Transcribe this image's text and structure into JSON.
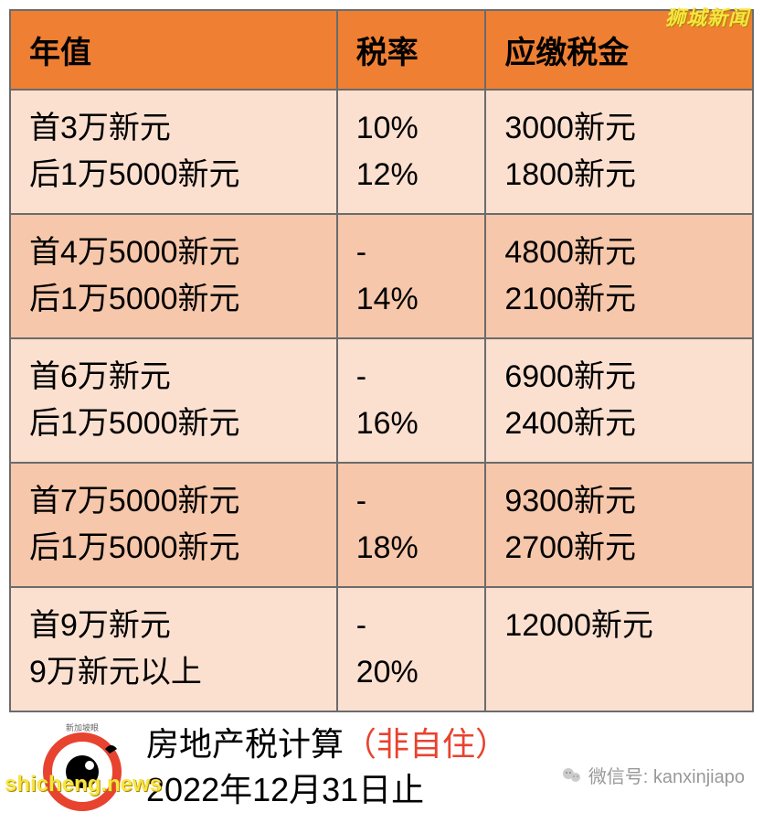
{
  "headers": {
    "col1": "年值",
    "col2": "税率",
    "col3": "应缴税金"
  },
  "rows": [
    {
      "bracket_a": "首3万新元",
      "bracket_b": "后1万5000新元",
      "rate_a": "10%",
      "rate_b": "12%",
      "tax_a": "3000新元",
      "tax_b": "1800新元",
      "shade": "light"
    },
    {
      "bracket_a": "首4万5000新元",
      "bracket_b": "后1万5000新元",
      "rate_a": "-",
      "rate_b": "14%",
      "tax_a": "4800新元",
      "tax_b": "2100新元",
      "shade": "dark"
    },
    {
      "bracket_a": "首6万新元",
      "bracket_b": "后1万5000新元",
      "rate_a": "-",
      "rate_b": "16%",
      "tax_a": "6900新元",
      "tax_b": "2400新元",
      "shade": "light"
    },
    {
      "bracket_a": "首7万5000新元",
      "bracket_b": "后1万5000新元",
      "rate_a": "-",
      "rate_b": "18%",
      "tax_a": "9300新元",
      "tax_b": "2700新元",
      "shade": "dark"
    },
    {
      "bracket_a": "首9万新元",
      "bracket_b": "9万新元以上",
      "rate_a": "-",
      "rate_b": "20%",
      "tax_a": "12000新元",
      "tax_b": "",
      "shade": "light"
    }
  ],
  "caption": {
    "line1_prefix": "房地产税计算",
    "line1_red": "（非自住）",
    "line2": "2022年12月31日止"
  },
  "watermarks": {
    "top_right": "狮城新闻",
    "bottom_left": "shicheng.news",
    "wechat_label": "微信号: kanxinjiapo"
  },
  "colors": {
    "header_bg": "#ef7f33",
    "row_light": "#fbe0d0",
    "row_dark": "#f6c7aa",
    "border": "#6b6b6b",
    "red_text": "#e8432f",
    "watermark": "#f5e642"
  }
}
